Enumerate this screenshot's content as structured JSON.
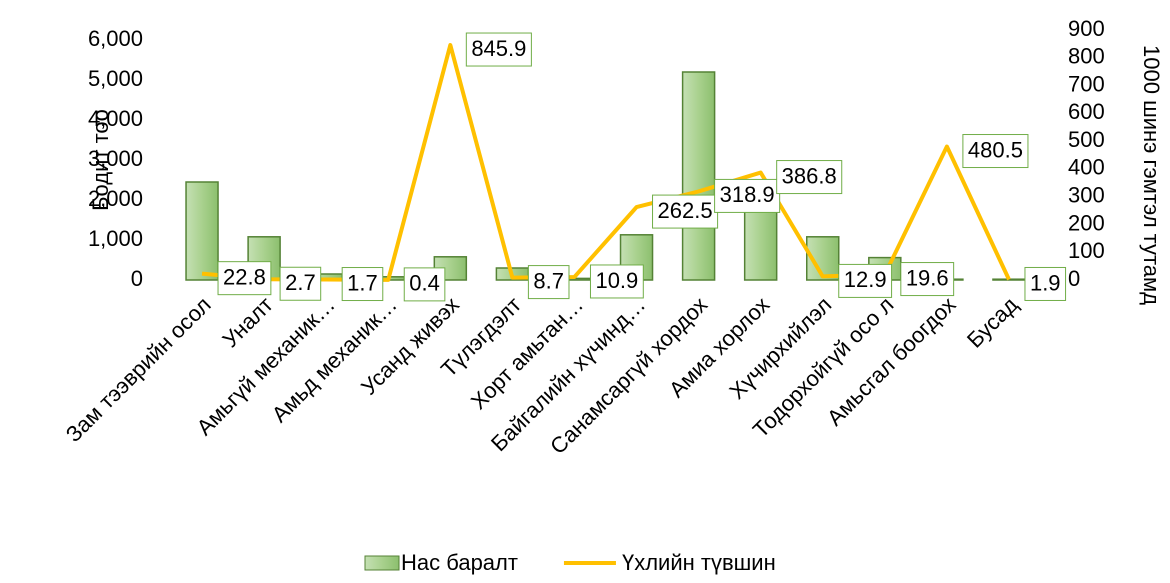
{
  "chart_data": {
    "type": "bar-line",
    "y_label": "Бодит тоо",
    "y2_label": "1000 шинэ гэмтэл тутамд",
    "categories": [
      "Зам тээврийн осол",
      "Уналт",
      "Амьгүй механик…",
      "Амьд механик…",
      "Усанд живэх",
      "Түлэгдэлт",
      "Хорт амьтан…",
      "Байгалийн хүчинд…",
      "Санамсаргүй хордох",
      "Амиа хорлох",
      "Хүчирхийлэл",
      "Тодорхойгүй осо л",
      "Амьсгал боогдох",
      "Бусад"
    ],
    "series": [
      {
        "name": "Нас баралт",
        "type": "bar",
        "color": "#a9d18e",
        "values": [
          2450,
          1080,
          150,
          80,
          580,
          300,
          40,
          1130,
          5200,
          1950,
          1080,
          560,
          20,
          20
        ]
      },
      {
        "name": "Үхлийн түвшин",
        "type": "line",
        "axis": "y2",
        "color": "#ffc000",
        "values": [
          22.8,
          2.7,
          1.7,
          0.4,
          845.9,
          8.7,
          10.9,
          262.5,
          318.9,
          386.8,
          12.9,
          19.6,
          480.5,
          1.9
        ]
      }
    ],
    "ylim": [
      0,
      6000
    ],
    "yticks": [
      0,
      {
        "value": 1000,
        "label": "1,000"
      },
      {
        "value": 2000,
        "label": "2,000"
      },
      {
        "value": 3000,
        "label": "3,000"
      },
      {
        "value": 4000,
        "label": "4,000"
      },
      {
        "value": 5000,
        "label": "5,000"
      },
      {
        "value": 6000,
        "label": "6,000"
      }
    ],
    "y2lim": [
      0,
      900
    ],
    "y2ticks": [
      0,
      100,
      200,
      300,
      400,
      500,
      600,
      700,
      800,
      900
    ],
    "legend": "bottom"
  }
}
